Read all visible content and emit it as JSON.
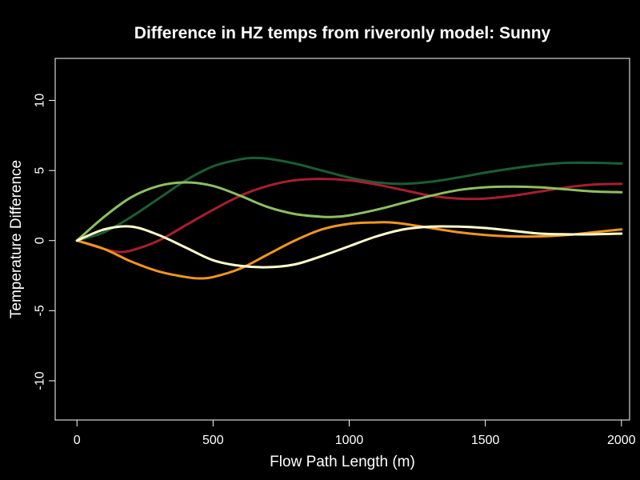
{
  "chart_data": {
    "type": "line",
    "title": "Difference in HZ temps from riveronly model: Sunny",
    "xlabel": "Flow Path Length (m)",
    "ylabel": "Temperature Difference",
    "xlim": [
      -80,
      2030
    ],
    "ylim": [
      -12.8,
      13
    ],
    "x_ticks": [
      0,
      500,
      1000,
      1500,
      2000
    ],
    "y_ticks": [
      -10,
      -5,
      0,
      5,
      10
    ],
    "grid": false,
    "series": [
      {
        "color": "#1a5e34",
        "x": [
          0,
          100,
          200,
          300,
          400,
          500,
          600,
          650,
          700,
          800,
          900,
          1000,
          1100,
          1200,
          1300,
          1400,
          1500,
          1600,
          1700,
          1800,
          1900,
          2000
        ],
        "y": [
          0,
          0.6,
          1.7,
          3.0,
          4.3,
          5.3,
          5.8,
          5.9,
          5.85,
          5.5,
          5.0,
          4.5,
          4.15,
          4.05,
          4.2,
          4.5,
          4.85,
          5.15,
          5.4,
          5.55,
          5.55,
          5.5
        ]
      },
      {
        "color": "#a81e2e",
        "x": [
          0,
          100,
          150,
          200,
          300,
          400,
          500,
          600,
          700,
          800,
          900,
          1000,
          1100,
          1200,
          1300,
          1400,
          1500,
          1600,
          1700,
          1800,
          1900,
          2000
        ],
        "y": [
          0,
          -0.6,
          -0.8,
          -0.7,
          0.0,
          1.1,
          2.2,
          3.2,
          3.9,
          4.3,
          4.4,
          4.3,
          4.0,
          3.6,
          3.2,
          3.0,
          3.0,
          3.2,
          3.5,
          3.8,
          4.0,
          4.05
        ]
      },
      {
        "color": "#8dbf60",
        "x": [
          0,
          100,
          200,
          300,
          400,
          500,
          600,
          700,
          800,
          900,
          950,
          1000,
          1100,
          1200,
          1300,
          1400,
          1500,
          1600,
          1700,
          1800,
          1900,
          2000
        ],
        "y": [
          0,
          1.7,
          3.1,
          3.9,
          4.15,
          3.9,
          3.2,
          2.4,
          1.9,
          1.7,
          1.7,
          1.8,
          2.2,
          2.7,
          3.2,
          3.6,
          3.8,
          3.85,
          3.8,
          3.65,
          3.5,
          3.45
        ]
      },
      {
        "color": "#f0961e",
        "x": [
          0,
          100,
          200,
          300,
          400,
          450,
          500,
          600,
          700,
          800,
          900,
          1000,
          1100,
          1150,
          1200,
          1300,
          1400,
          1500,
          1600,
          1700,
          1800,
          1900,
          2000
        ],
        "y": [
          0,
          -0.6,
          -1.5,
          -2.2,
          -2.6,
          -2.7,
          -2.6,
          -2.0,
          -1.0,
          0.0,
          0.8,
          1.2,
          1.3,
          1.3,
          1.2,
          0.9,
          0.6,
          0.4,
          0.3,
          0.3,
          0.4,
          0.6,
          0.8
        ]
      },
      {
        "color": "#ffffcc",
        "x": [
          0,
          100,
          200,
          300,
          400,
          500,
          600,
          700,
          800,
          900,
          1000,
          1100,
          1200,
          1300,
          1400,
          1500,
          1600,
          1700,
          1800,
          1900,
          2000
        ],
        "y": [
          0,
          0.8,
          1.0,
          0.4,
          -0.5,
          -1.4,
          -1.8,
          -1.9,
          -1.7,
          -1.1,
          -0.4,
          0.3,
          0.8,
          1.0,
          1.0,
          0.9,
          0.7,
          0.5,
          0.45,
          0.45,
          0.5
        ]
      }
    ]
  }
}
